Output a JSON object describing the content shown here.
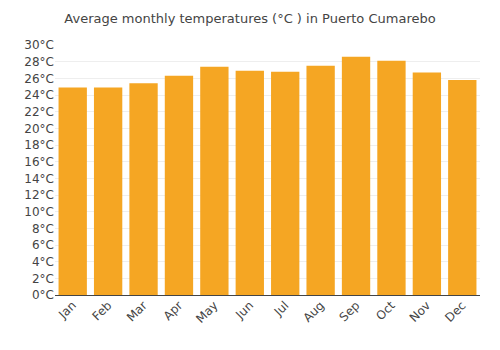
{
  "chart_data": {
    "type": "bar",
    "title": "Average monthly temperatures (°C ) in Puerto Cumarebo",
    "categories": [
      "Jan",
      "Feb",
      "Mar",
      "Apr",
      "May",
      "Jun",
      "Jul",
      "Aug",
      "Sep",
      "Oct",
      "Nov",
      "Dec"
    ],
    "values": [
      24.9,
      24.9,
      25.4,
      26.3,
      27.4,
      26.9,
      26.8,
      27.5,
      28.6,
      28.1,
      26.7,
      25.8
    ],
    "color": "#F5A623",
    "ylim": [
      0,
      30
    ],
    "yticks": [
      {
        "value": 0,
        "label": "0°C"
      },
      {
        "value": 2,
        "label": "2°C"
      },
      {
        "value": 4,
        "label": "4°C"
      },
      {
        "value": 6,
        "label": "6°C"
      },
      {
        "value": 8,
        "label": "8°C"
      },
      {
        "value": 10,
        "label": "10°C"
      },
      {
        "value": 12,
        "label": "12°C"
      },
      {
        "value": 14,
        "label": "14°C"
      },
      {
        "value": 16,
        "label": "16°C"
      },
      {
        "value": 18,
        "label": "18°C"
      },
      {
        "value": 20,
        "label": "20°C"
      },
      {
        "value": 22,
        "label": "22°C"
      },
      {
        "value": 24,
        "label": "24°C"
      },
      {
        "value": 26,
        "label": "26°C"
      },
      {
        "value": 28,
        "label": "28°C"
      },
      {
        "value": 30,
        "label": "30°C"
      }
    ],
    "grid": true
  }
}
